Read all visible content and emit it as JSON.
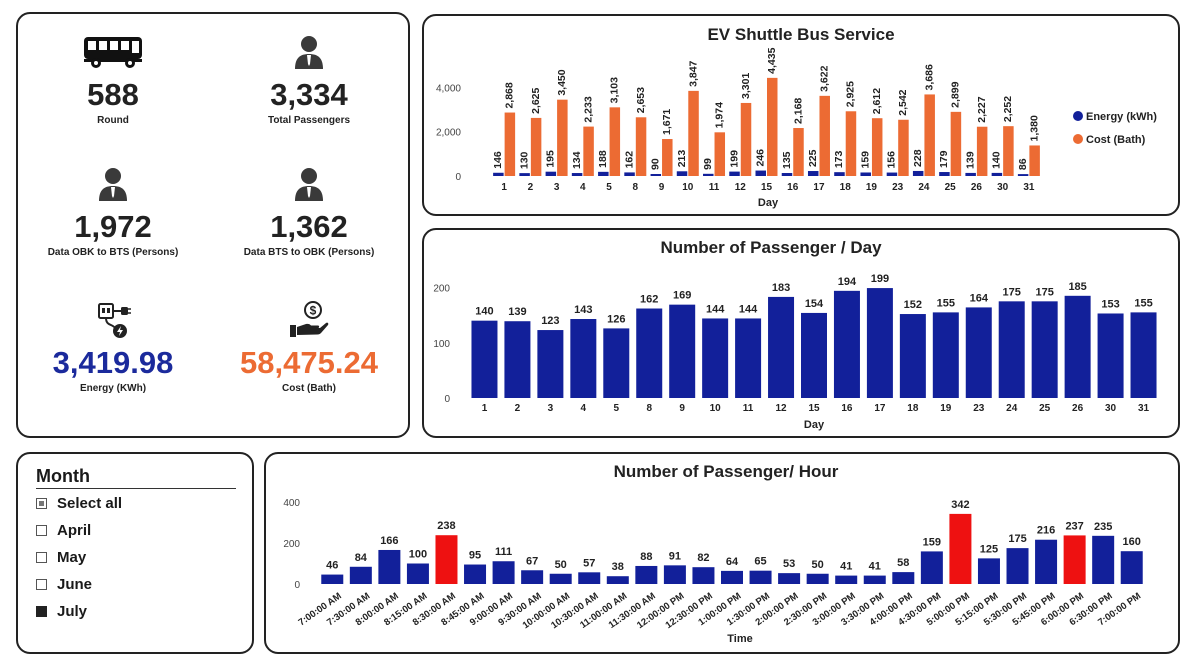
{
  "kpis": {
    "rounds": {
      "value": "588",
      "label": "Round"
    },
    "passengers": {
      "value": "3,334",
      "label": "Total Passengers"
    },
    "obk_to_bts": {
      "value": "1,972",
      "label": "Data OBK to BTS (Persons)"
    },
    "bts_to_obk": {
      "value": "1,362",
      "label": "Data BTS to OBK (Persons)"
    },
    "energy": {
      "value": "3,419.98",
      "label": "Energy (KWh)"
    },
    "cost": {
      "value": "58,475.24",
      "label": "Cost (Bath)"
    }
  },
  "icons": [
    "bus-icon",
    "person-icon",
    "person-icon",
    "person-icon",
    "ev-charger-icon",
    "hand-money-icon"
  ],
  "month_filter": {
    "title": "Month",
    "items": [
      {
        "label": "Select all",
        "state": "partial"
      },
      {
        "label": "April",
        "state": "unchecked"
      },
      {
        "label": "May",
        "state": "unchecked"
      },
      {
        "label": "June",
        "state": "unchecked"
      },
      {
        "label": "July",
        "state": "checked"
      }
    ]
  },
  "colors": {
    "blue": "#12209a",
    "orange": "#ec6b33",
    "red": "#ee1111"
  },
  "chart_data": [
    {
      "type": "bar",
      "title": "EV Shuttle Bus Service",
      "xlabel": "Day",
      "ylabel": "",
      "categories": [
        "1",
        "2",
        "3",
        "4",
        "5",
        "8",
        "9",
        "10",
        "11",
        "12",
        "15",
        "16",
        "17",
        "18",
        "19",
        "23",
        "24",
        "25",
        "26",
        "30",
        "31"
      ],
      "series": [
        {
          "name": "Energy (kWh)",
          "values": [
            146,
            130,
            195,
            134,
            188,
            162,
            90,
            213,
            99,
            199,
            246,
            135,
            225,
            173,
            159,
            156,
            228,
            179,
            139,
            140,
            86
          ]
        },
        {
          "name": "Cost (Bath)",
          "values": [
            2868,
            2625,
            3450,
            2233,
            3103,
            2653,
            1671,
            3847,
            1974,
            3301,
            4435,
            2168,
            3622,
            2925,
            2612,
            2542,
            3686,
            2899,
            2227,
            2252,
            1380
          ]
        }
      ],
      "yticks": [
        "0",
        "2,000",
        "4,000"
      ],
      "ylim": [
        0,
        4700
      ],
      "legend": "right"
    },
    {
      "type": "bar",
      "title": "Number of Passenger / Day",
      "xlabel": "Day",
      "ylabel": "",
      "categories": [
        "1",
        "2",
        "3",
        "4",
        "5",
        "8",
        "9",
        "10",
        "11",
        "12",
        "15",
        "16",
        "17",
        "18",
        "19",
        "23",
        "24",
        "25",
        "26",
        "30",
        "31"
      ],
      "values": [
        140,
        139,
        123,
        143,
        126,
        162,
        169,
        144,
        144,
        183,
        154,
        194,
        199,
        152,
        155,
        164,
        175,
        175,
        185,
        153,
        155
      ],
      "yticks": [
        "0",
        "100",
        "200"
      ],
      "ylim": [
        0,
        210
      ]
    },
    {
      "type": "bar",
      "title": "Number of Passenger/ Hour",
      "xlabel": "Time",
      "ylabel": "",
      "categories": [
        "7:00:00 AM",
        "7:30:00 AM",
        "8:00:00 AM",
        "8:15:00 AM",
        "8:30:00 AM",
        "8:45:00 AM",
        "9:00:00 AM",
        "9:30:00 AM",
        "10:00:00 AM",
        "10:30:00 AM",
        "11:00:00 AM",
        "11:30:00 AM",
        "12:00:00 PM",
        "12:30:00 PM",
        "1:00:00 PM",
        "1:30:00 PM",
        "2:00:00 PM",
        "2:30:00 PM",
        "3:00:00 PM",
        "3:30:00 PM",
        "4:00:00 PM",
        "4:30:00 PM",
        "5:00:00 PM",
        "5:15:00 PM",
        "5:30:00 PM",
        "5:45:00 PM",
        "6:00:00 PM",
        "6:30:00 PM",
        "7:00:00 PM"
      ],
      "values": [
        46,
        84,
        166,
        100,
        238,
        95,
        111,
        67,
        50,
        57,
        38,
        88,
        91,
        82,
        64,
        65,
        53,
        50,
        41,
        41,
        58,
        159,
        342,
        125,
        175,
        216,
        237,
        235,
        160
      ],
      "highlighted": [
        "8:30:00 AM",
        "5:00:00 PM",
        "6:00:00 PM"
      ],
      "yticks": [
        "0",
        "200",
        "400"
      ],
      "ylim": [
        0,
        400
      ]
    }
  ]
}
